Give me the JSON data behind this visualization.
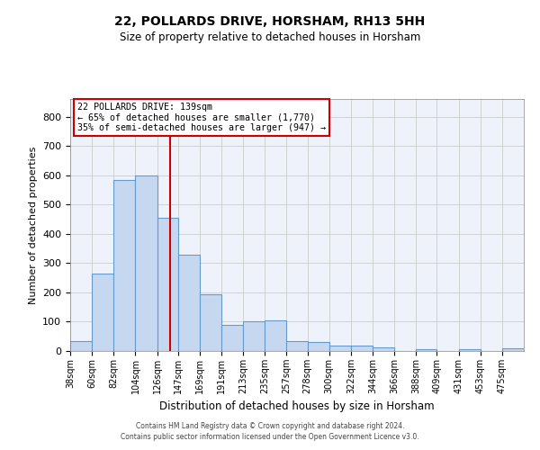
{
  "title": "22, POLLARDS DRIVE, HORSHAM, RH13 5HH",
  "subtitle": "Size of property relative to detached houses in Horsham",
  "xlabel": "Distribution of detached houses by size in Horsham",
  "ylabel": "Number of detached properties",
  "property_label": "22 POLLARDS DRIVE: 139sqm",
  "annotation_line1": "← 65% of detached houses are smaller (1,770)",
  "annotation_line2": "35% of semi-detached houses are larger (947) →",
  "footer_line1": "Contains HM Land Registry data © Crown copyright and database right 2024.",
  "footer_line2": "Contains public sector information licensed under the Open Government Licence v3.0.",
  "bin_edges": [
    38,
    60,
    82,
    104,
    126,
    147,
    169,
    191,
    213,
    235,
    257,
    278,
    300,
    322,
    344,
    366,
    388,
    409,
    431,
    453,
    475
  ],
  "bar_heights": [
    35,
    265,
    585,
    600,
    455,
    328,
    195,
    90,
    100,
    105,
    35,
    32,
    18,
    18,
    12,
    0,
    6,
    0,
    6,
    0,
    8
  ],
  "bar_color": "#c5d8f0",
  "bar_edge_color": "#6699cc",
  "vline_x": 139,
  "vline_color": "#cc0000",
  "annotation_box_color": "#cc0000",
  "grid_color": "#cccccc",
  "background_color": "#eef2fb",
  "ylim": [
    0,
    860
  ],
  "yticks": [
    0,
    100,
    200,
    300,
    400,
    500,
    600,
    700,
    800
  ]
}
